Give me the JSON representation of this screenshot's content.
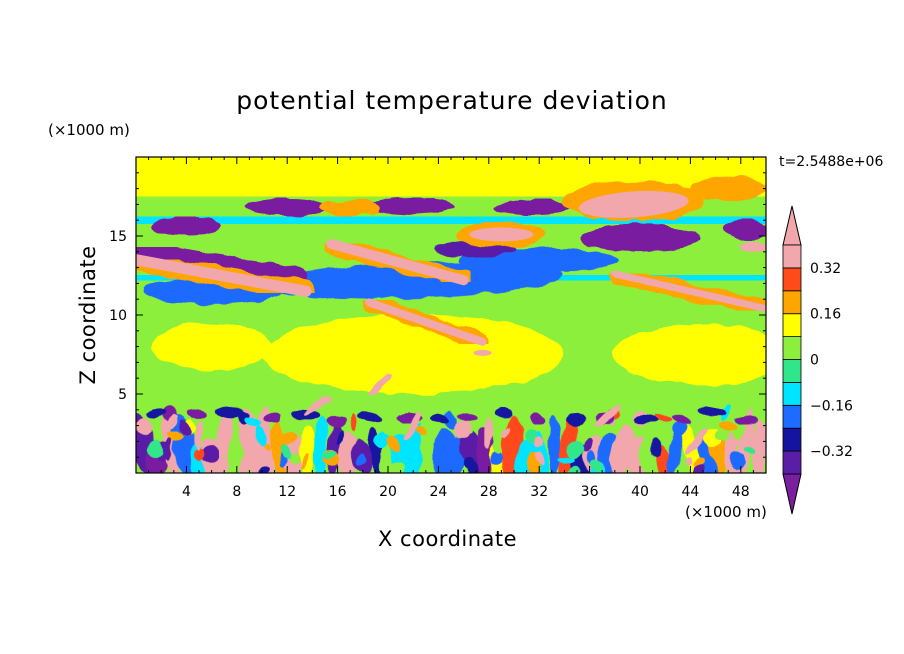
{
  "chart_data": {
    "type": "heatmap",
    "title": "potential temperature deviation",
    "xlabel": "X coordinate",
    "ylabel": "Z coordinate",
    "x_unit": "(×1000 m)",
    "y_unit": "(×1000 m)",
    "time_label": "t=2.5488e+06",
    "xlim": [
      0,
      50
    ],
    "ylim": [
      0,
      20
    ],
    "x_ticks": [
      4,
      8,
      12,
      16,
      20,
      24,
      28,
      32,
      36,
      40,
      44,
      48
    ],
    "x_tick_labels": [
      "4",
      "8",
      "12",
      "16",
      "20",
      "24",
      "28",
      "32",
      "36",
      "40",
      "44",
      "48"
    ],
    "y_ticks": [
      5,
      10,
      15
    ],
    "y_tick_labels": [
      "5",
      "10",
      "15"
    ],
    "colorbar": {
      "levels": [
        -0.4,
        -0.32,
        -0.24,
        -0.16,
        -0.08,
        0,
        0.08,
        0.16,
        0.24,
        0.32,
        0.4
      ],
      "tick_values": [
        0.32,
        0.16,
        0,
        -0.16,
        -0.32
      ],
      "tick_labels": [
        "0.32",
        "0.16",
        "0",
        "−0.16",
        "−0.32"
      ],
      "colors": [
        "#7a1fa0",
        "#5a1ea6",
        "#1414a0",
        "#1e6bff",
        "#00e5ff",
        "#30e68a",
        "#8cef3c",
        "#ffff00",
        "#ffa500",
        "#ff4a1a",
        "#f2a7ac"
      ],
      "extend": "both"
    },
    "features": [
      {
        "kind": "positive band",
        "x": [
          0,
          13.5
        ],
        "z": [
          13.5,
          11.5
        ],
        "value": 0.4
      },
      {
        "kind": "positive band",
        "x": [
          15.5,
          26
        ],
        "z": [
          14.5,
          12.2
        ],
        "value": 0.4
      },
      {
        "kind": "positive band",
        "x": [
          18.5,
          27.5
        ],
        "z": [
          10.8,
          8.3
        ],
        "value": 0.4
      },
      {
        "kind": "positive band",
        "x": [
          38,
          50
        ],
        "z": [
          12.5,
          10.5
        ],
        "value": 0.4
      },
      {
        "kind": "positive blob",
        "x": [
          36,
          43.5
        ],
        "z": [
          16.5,
          17.7
        ],
        "value": 0.4
      },
      {
        "kind": "positive blob",
        "x": [
          26,
          32
        ],
        "z": [
          14.5,
          15.6
        ],
        "value": 0.4
      },
      {
        "kind": "negative band",
        "x": [
          0,
          14
        ],
        "z": [
          14.8,
          13.2
        ],
        "value": -0.4
      },
      {
        "kind": "negative blob",
        "x": [
          37,
          43
        ],
        "z": [
          15.5,
          14.2
        ],
        "value": -0.4
      },
      {
        "kind": "negative blob",
        "x": [
          9,
          15
        ],
        "z": [
          17.2,
          16.2
        ],
        "value": -0.4
      },
      {
        "kind": "boundary layer",
        "x": [
          0,
          50
        ],
        "z": [
          0,
          4
        ],
        "value": "mixed"
      }
    ]
  }
}
